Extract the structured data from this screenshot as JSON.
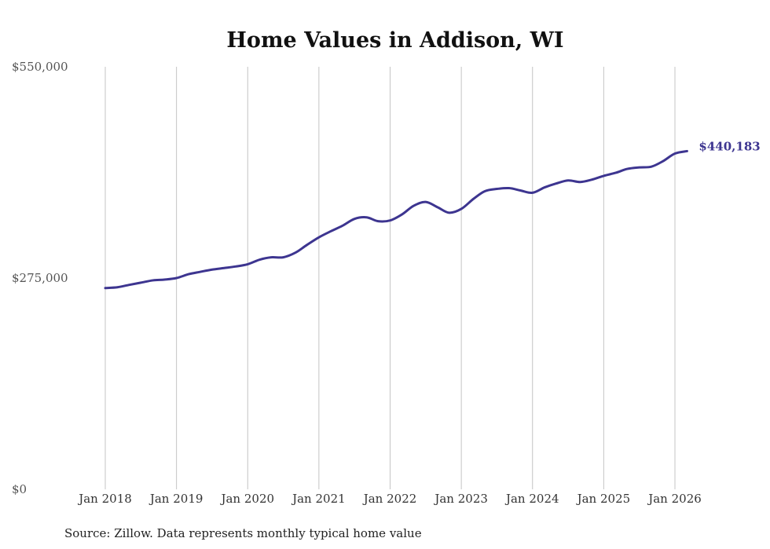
{
  "chart_data": {
    "type": "line",
    "title": "Home Values in Addison, WI",
    "source": "Source: Zillow. Data represents monthly typical home value",
    "xlabel": "",
    "ylabel": "",
    "ylim": [
      0,
      550000
    ],
    "yticks": [
      {
        "value": 0,
        "label": "$0"
      },
      {
        "value": 275000,
        "label": "$275,000"
      },
      {
        "value": 550000,
        "label": "$550,000"
      }
    ],
    "xticks": [
      {
        "value": 2018.0,
        "label": "Jan 2018"
      },
      {
        "value": 2019.0,
        "label": "Jan 2019"
      },
      {
        "value": 2020.0,
        "label": "Jan 2020"
      },
      {
        "value": 2021.0,
        "label": "Jan 2021"
      },
      {
        "value": 2022.0,
        "label": "Jan 2022"
      },
      {
        "value": 2023.0,
        "label": "Jan 2023"
      },
      {
        "value": 2024.0,
        "label": "Jan 2024"
      },
      {
        "value": 2025.0,
        "label": "Jan 2025"
      },
      {
        "value": 2026.0,
        "label": "Jan 2026"
      }
    ],
    "xlim": [
      2018.0,
      2026.17
    ],
    "grid": "vertical",
    "series": [
      {
        "name": "Typical home value",
        "color": "#3d3590",
        "end_label": "$440,183",
        "x": [
          2018.0,
          2018.17,
          2018.33,
          2018.5,
          2018.67,
          2018.83,
          2019.0,
          2019.17,
          2019.33,
          2019.5,
          2019.67,
          2019.83,
          2020.0,
          2020.17,
          2020.33,
          2020.5,
          2020.67,
          2020.83,
          2021.0,
          2021.17,
          2021.33,
          2021.5,
          2021.67,
          2021.83,
          2022.0,
          2022.17,
          2022.33,
          2022.5,
          2022.67,
          2022.83,
          2023.0,
          2023.17,
          2023.33,
          2023.5,
          2023.67,
          2023.83,
          2024.0,
          2024.17,
          2024.33,
          2024.5,
          2024.67,
          2024.83,
          2025.0,
          2025.17,
          2025.33,
          2025.5,
          2025.67,
          2025.83,
          2026.0,
          2026.17
        ],
        "values": [
          262000,
          263000,
          266000,
          269000,
          272000,
          273000,
          275000,
          280000,
          283000,
          286000,
          288000,
          290000,
          293000,
          299000,
          302000,
          302000,
          308000,
          318000,
          328000,
          336000,
          343000,
          352000,
          354000,
          349000,
          350000,
          358000,
          369000,
          374000,
          367000,
          360000,
          365000,
          378000,
          388000,
          391000,
          392000,
          389000,
          386000,
          393000,
          398000,
          402000,
          400000,
          403000,
          408000,
          412000,
          417000,
          419000,
          420000,
          427000,
          437000,
          440183
        ]
      }
    ]
  }
}
